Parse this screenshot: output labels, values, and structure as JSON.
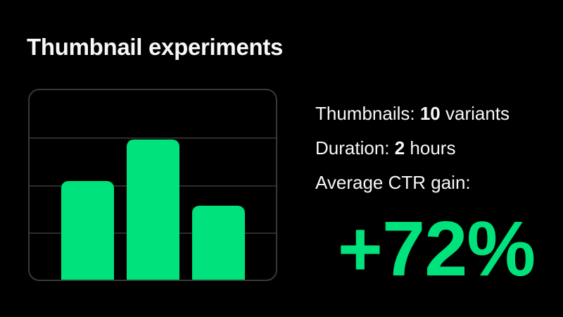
{
  "page": {
    "title": "Thumbnail experiments",
    "background_color": "#000000",
    "text_color": "#f7f7f7",
    "accent_color": "#00e27b",
    "card_border_color": "#39393b",
    "gridline_color": "#2c2c2e"
  },
  "stats": {
    "lines": [
      {
        "prefix": "Thumbnails: ",
        "bold": "10",
        "suffix": " variants"
      },
      {
        "prefix": "Duration: ",
        "bold": "2",
        "suffix": " hours"
      },
      {
        "prefix": "Average CTR gain:",
        "bold": "",
        "suffix": ""
      }
    ],
    "highlight_value": "+72%"
  },
  "chart_data": {
    "type": "bar",
    "title": "",
    "xlabel": "",
    "ylabel": "",
    "values": [
      52,
      74,
      39
    ],
    "value_unit": "percent of plot height (bars unlabeled in image)",
    "ylim": [
      0,
      100
    ],
    "grid": true,
    "gridlines_pct": [
      25,
      50,
      75
    ],
    "bar_color": "#00e27b",
    "legend": false
  }
}
